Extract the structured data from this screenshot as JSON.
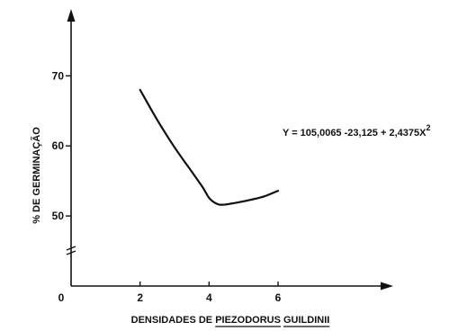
{
  "chart_data": {
    "type": "line",
    "title": "",
    "xlabel_parts": [
      {
        "text": "DENSIDADES DE ",
        "underline": false
      },
      {
        "text": "PIEZODORUS",
        "underline": true
      },
      {
        "text": " ",
        "underline": false
      },
      {
        "text": "GUILDINII",
        "underline": true
      }
    ],
    "ylabel": "% DE GERMINAÇÃO",
    "x_ticks": [
      {
        "value": 0,
        "label": "0"
      },
      {
        "value": 2,
        "label": "2"
      },
      {
        "value": 4,
        "label": "4"
      },
      {
        "value": 6,
        "label": "6"
      }
    ],
    "y_ticks": [
      {
        "value": 50,
        "label": "50"
      },
      {
        "value": 60,
        "label": "60"
      },
      {
        "value": 70,
        "label": "70"
      }
    ],
    "xlim": [
      0,
      9
    ],
    "ylim": [
      40,
      78
    ],
    "y_axis_break": true,
    "grid": false,
    "equation": "Y = 105,0065 -23,125 + 2,4375X",
    "equation_superscript": "2",
    "series": [
      {
        "x": [
          2.0,
          2.5,
          3.0,
          3.5,
          3.8,
          4.0,
          4.2,
          4.4,
          4.8,
          5.2,
          5.6,
          6.0
        ],
        "y": [
          68.0,
          63.7,
          59.8,
          56.3,
          54.2,
          52.6,
          51.8,
          51.6,
          51.9,
          52.3,
          52.8,
          53.6
        ]
      }
    ]
  }
}
